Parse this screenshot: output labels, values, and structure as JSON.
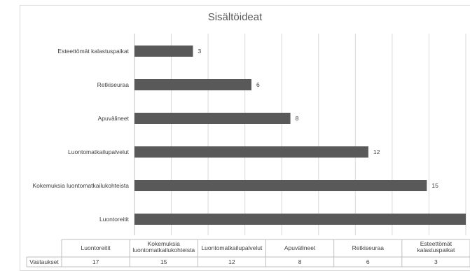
{
  "chart_data": {
    "type": "bar",
    "title": "Sisältöideat",
    "orientation": "horizontal",
    "categories": [
      "Esteettömät kalastuspaikat",
      "Retkiseuraa",
      "Apuvälineet",
      "Luontomatkailupalvelut",
      "Kokemuksia luontomatkailukohteista",
      "Luontoreitit"
    ],
    "series": [
      {
        "name": "Vastaukset",
        "values": [
          3,
          6,
          8,
          12,
          15,
          17
        ]
      }
    ],
    "value_labels": [
      "3",
      "6",
      "8",
      "12",
      "15",
      ""
    ],
    "xlim": [
      0,
      17
    ],
    "grid": true,
    "bar_color": "#595959",
    "table": {
      "row_header": "Vastaukset",
      "columns": [
        {
          "lines": [
            "Luontoreitit"
          ],
          "value": "17"
        },
        {
          "lines": [
            "Kokemuksia",
            "luontomatkailukohteista"
          ],
          "value": "15"
        },
        {
          "lines": [
            "Luontomatkailupalvelut"
          ],
          "value": "12"
        },
        {
          "lines": [
            "Apuvälineet"
          ],
          "value": "8"
        },
        {
          "lines": [
            "Retkiseuraa"
          ],
          "value": "6"
        },
        {
          "lines": [
            "Esteettömät",
            "kalastuspaikat"
          ],
          "value": "3"
        }
      ]
    }
  }
}
